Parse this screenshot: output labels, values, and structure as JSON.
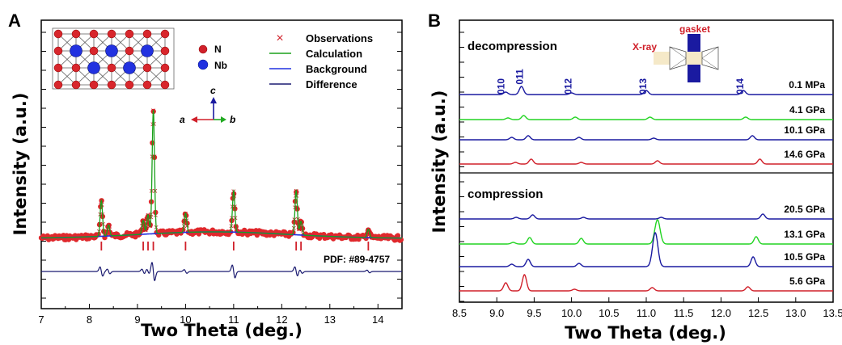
{
  "chart_data": [
    {
      "panel": "A",
      "type": "scatter",
      "xlabel": "Two Theta (deg.)",
      "ylabel": "Intensity (a.u.)",
      "xlim": [
        7,
        14.5
      ],
      "x_ticks": [
        "7",
        "8",
        "9",
        "10",
        "11",
        "12",
        "13",
        "14"
      ],
      "legend": {
        "position": "top-right",
        "entries": [
          "Observations",
          "Calculation",
          "Background",
          "Difference"
        ]
      },
      "peaks": [
        {
          "x": 8.25,
          "obs": 0.26,
          "diff": 0.1
        },
        {
          "x": 8.4,
          "obs": 0.08,
          "diff": 0.05
        },
        {
          "x": 9.12,
          "obs": 0.1,
          "diff": 0.05
        },
        {
          "x": 9.22,
          "obs": 0.14,
          "diff": 0.05
        },
        {
          "x": 9.33,
          "obs": 0.9,
          "diff": 0.2
        },
        {
          "x": 10.0,
          "obs": 0.14,
          "diff": 0.04
        },
        {
          "x": 11.0,
          "obs": 0.3,
          "diff": 0.14
        },
        {
          "x": 12.3,
          "obs": 0.32,
          "diff": 0.1
        },
        {
          "x": 12.4,
          "obs": 0.1,
          "diff": 0.04
        },
        {
          "x": 13.8,
          "obs": 0.06,
          "diff": 0.03
        }
      ],
      "reflection_ticks": [
        8.25,
        9.12,
        9.22,
        9.33,
        10.0,
        11.0,
        12.3,
        12.4,
        13.8
      ],
      "annotations": {
        "pdf": "PDF: #89-4757"
      },
      "crystal_legend": [
        "N",
        "Nb"
      ],
      "axes_labels": {
        "a": "a",
        "b": "b",
        "c": "c"
      }
    },
    {
      "panel": "B",
      "type": "line",
      "xlabel": "Two Theta (deg.)",
      "ylabel": "Intensity (a.u.)",
      "xlim": [
        8.5,
        13.5
      ],
      "x_ticks": [
        "8.5",
        "9.0",
        "9.5",
        "10.0",
        "10.5",
        "11.0",
        "11.5",
        "12.0",
        "12.5",
        "13.0",
        "13.5"
      ],
      "section_labels": [
        "decompression",
        "compression"
      ],
      "hkl_labels": [
        {
          "x": 9.1,
          "label": "010"
        },
        {
          "x": 9.35,
          "label": "011"
        },
        {
          "x": 10.0,
          "label": "012"
        },
        {
          "x": 11.0,
          "label": "013"
        },
        {
          "x": 12.3,
          "label": "014"
        }
      ],
      "inset_labels": {
        "xray": "X-ray",
        "gasket": "gasket"
      },
      "series": [
        {
          "name": "0.1 MPa",
          "color": "#1a1aa0",
          "peaks": [
            [
              9.12,
              0.3
            ],
            [
              9.33,
              1.0
            ],
            [
              10.0,
              0.2
            ],
            [
              11.0,
              0.5
            ],
            [
              12.3,
              0.5
            ]
          ]
        },
        {
          "name": "4.1 GPa",
          "color": "#22d422",
          "peaks": [
            [
              9.15,
              0.2
            ],
            [
              9.36,
              0.5
            ],
            [
              10.05,
              0.3
            ],
            [
              11.05,
              0.3
            ],
            [
              12.33,
              0.3
            ]
          ]
        },
        {
          "name": "10.1 GPa",
          "color": "#1a1aa0",
          "peaks": [
            [
              9.2,
              0.3
            ],
            [
              9.42,
              0.5
            ],
            [
              10.1,
              0.3
            ],
            [
              11.1,
              0.2
            ],
            [
              12.42,
              0.5
            ]
          ]
        },
        {
          "name": "14.6 GPa",
          "color": "#d0202a",
          "peaks": [
            [
              9.25,
              0.2
            ],
            [
              9.46,
              0.6
            ],
            [
              10.13,
              0.2
            ],
            [
              11.15,
              0.4
            ],
            [
              12.52,
              0.6
            ]
          ]
        },
        {
          "name": "20.5 GPa",
          "color": "#1a1aa0",
          "peaks": [
            [
              9.26,
              0.2
            ],
            [
              9.48,
              0.5
            ],
            [
              10.16,
              0.2
            ],
            [
              11.2,
              0.2
            ],
            [
              12.56,
              0.6
            ]
          ]
        },
        {
          "name": "13.1 GPa",
          "color": "#22d422",
          "peaks": [
            [
              9.22,
              0.2
            ],
            [
              9.44,
              0.8
            ],
            [
              10.13,
              0.7
            ],
            [
              11.15,
              3.0
            ],
            [
              12.47,
              0.9
            ]
          ]
        },
        {
          "name": "10.5 GPa",
          "color": "#1a1aa0",
          "peaks": [
            [
              9.2,
              0.3
            ],
            [
              9.42,
              0.9
            ],
            [
              10.1,
              0.4
            ],
            [
              11.12,
              4.2
            ],
            [
              12.43,
              1.2
            ]
          ]
        },
        {
          "name": "5.6 GPa",
          "color": "#d0202a",
          "peaks": [
            [
              9.12,
              1.0
            ],
            [
              9.37,
              2.0
            ],
            [
              10.04,
              0.2
            ],
            [
              11.08,
              0.4
            ],
            [
              12.36,
              0.5
            ]
          ]
        }
      ]
    }
  ]
}
